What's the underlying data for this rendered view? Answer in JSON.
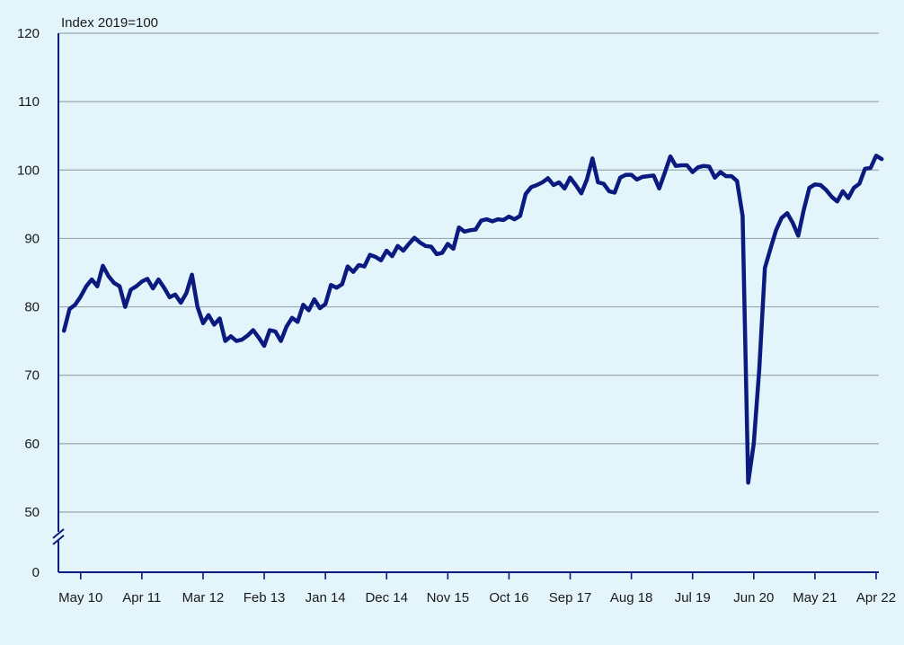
{
  "chart_data": {
    "type": "line",
    "ylabel": "Index 2019=100",
    "y_ticks": [
      0,
      50,
      60,
      70,
      80,
      90,
      100,
      110,
      120
    ],
    "y_axis_break": "between 0 and 50",
    "ylim": [
      50,
      120
    ],
    "x_tick_labels": [
      "May 10",
      "Apr 11",
      "Mar 12",
      "Feb 13",
      "Jan 14",
      "Dec 14",
      "Nov 15",
      "Oct 16",
      "Sep 17",
      "Aug 18",
      "Jul 19",
      "Jun 20",
      "May 21",
      "Apr 22"
    ],
    "grid": "horizontal",
    "colors": {
      "line": "#0a1a7f",
      "grid": "#9aa8b0",
      "axis": "#0a1a7f",
      "background": "#e3f4fb"
    },
    "series": [
      {
        "points": [
          [
            "2010-02",
            76.5
          ],
          [
            "2010-03",
            79.7
          ],
          [
            "2010-04",
            80.3
          ],
          [
            "2010-05",
            81.5
          ],
          [
            "2010-06",
            83.0
          ],
          [
            "2010-07",
            84.0
          ],
          [
            "2010-08",
            83.0
          ],
          [
            "2010-09",
            86.0
          ],
          [
            "2010-10",
            84.5
          ],
          [
            "2010-11",
            83.5
          ],
          [
            "2010-12",
            83.0
          ],
          [
            "2011-01",
            80.0
          ],
          [
            "2011-02",
            82.5
          ],
          [
            "2011-03",
            83.0
          ],
          [
            "2011-04",
            83.7
          ],
          [
            "2011-05",
            84.1
          ],
          [
            "2011-06",
            82.7
          ],
          [
            "2011-07",
            84.0
          ],
          [
            "2011-08",
            82.8
          ],
          [
            "2011-09",
            81.4
          ],
          [
            "2011-10",
            81.8
          ],
          [
            "2011-11",
            80.6
          ],
          [
            "2011-12",
            82.0
          ],
          [
            "2012-01",
            84.7
          ],
          [
            "2012-02",
            80.0
          ],
          [
            "2012-03",
            77.6
          ],
          [
            "2012-04",
            78.8
          ],
          [
            "2012-05",
            77.4
          ],
          [
            "2012-06",
            78.3
          ],
          [
            "2012-07",
            75.0
          ],
          [
            "2012-08",
            75.7
          ],
          [
            "2012-09",
            75.0
          ],
          [
            "2012-10",
            75.2
          ],
          [
            "2012-11",
            75.8
          ],
          [
            "2012-12",
            76.6
          ],
          [
            "2013-01",
            75.5
          ],
          [
            "2013-02",
            74.3
          ],
          [
            "2013-03",
            76.6
          ],
          [
            "2013-04",
            76.4
          ],
          [
            "2013-05",
            75.0
          ],
          [
            "2013-06",
            77.1
          ],
          [
            "2013-07",
            78.4
          ],
          [
            "2013-08",
            77.8
          ],
          [
            "2013-09",
            80.3
          ],
          [
            "2013-10",
            79.5
          ],
          [
            "2013-11",
            81.1
          ],
          [
            "2013-12",
            79.8
          ],
          [
            "2014-01",
            80.4
          ],
          [
            "2014-02",
            83.2
          ],
          [
            "2014-03",
            82.8
          ],
          [
            "2014-04",
            83.3
          ],
          [
            "2014-05",
            85.9
          ],
          [
            "2014-06",
            85.1
          ],
          [
            "2014-07",
            86.1
          ],
          [
            "2014-08",
            85.9
          ],
          [
            "2014-09",
            87.6
          ],
          [
            "2014-10",
            87.3
          ],
          [
            "2014-11",
            86.8
          ],
          [
            "2014-12",
            88.2
          ],
          [
            "2015-01",
            87.4
          ],
          [
            "2015-02",
            88.9
          ],
          [
            "2015-03",
            88.2
          ],
          [
            "2015-04",
            89.2
          ],
          [
            "2015-05",
            90.1
          ],
          [
            "2015-06",
            89.4
          ],
          [
            "2015-07",
            88.9
          ],
          [
            "2015-08",
            88.8
          ],
          [
            "2015-09",
            87.7
          ],
          [
            "2015-10",
            87.9
          ],
          [
            "2015-11",
            89.2
          ],
          [
            "2015-12",
            88.5
          ],
          [
            "2016-01",
            91.6
          ],
          [
            "2016-02",
            91.0
          ],
          [
            "2016-03",
            91.2
          ],
          [
            "2016-04",
            91.3
          ],
          [
            "2016-05",
            92.6
          ],
          [
            "2016-06",
            92.8
          ],
          [
            "2016-07",
            92.5
          ],
          [
            "2016-08",
            92.8
          ],
          [
            "2016-09",
            92.7
          ],
          [
            "2016-10",
            93.2
          ],
          [
            "2016-11",
            92.8
          ],
          [
            "2016-12",
            93.3
          ],
          [
            "2017-01",
            96.5
          ],
          [
            "2017-02",
            97.5
          ],
          [
            "2017-03",
            97.8
          ],
          [
            "2017-04",
            98.2
          ],
          [
            "2017-05",
            98.8
          ],
          [
            "2017-06",
            97.8
          ],
          [
            "2017-07",
            98.2
          ],
          [
            "2017-08",
            97.3
          ],
          [
            "2017-09",
            98.9
          ],
          [
            "2017-10",
            97.8
          ],
          [
            "2017-11",
            96.6
          ],
          [
            "2017-12",
            98.6
          ],
          [
            "2018-01",
            101.7
          ],
          [
            "2018-02",
            98.2
          ],
          [
            "2018-03",
            98.0
          ],
          [
            "2018-04",
            96.9
          ],
          [
            "2018-05",
            96.7
          ],
          [
            "2018-06",
            98.9
          ],
          [
            "2018-07",
            99.3
          ],
          [
            "2018-08",
            99.3
          ],
          [
            "2018-09",
            98.6
          ],
          [
            "2018-10",
            99.0
          ],
          [
            "2018-11",
            99.1
          ],
          [
            "2018-12",
            99.2
          ],
          [
            "2019-01",
            97.3
          ],
          [
            "2019-02",
            99.6
          ],
          [
            "2019-03",
            102.0
          ],
          [
            "2019-04",
            100.6
          ],
          [
            "2019-05",
            100.7
          ],
          [
            "2019-06",
            100.7
          ],
          [
            "2019-07",
            99.7
          ],
          [
            "2019-08",
            100.4
          ],
          [
            "2019-09",
            100.6
          ],
          [
            "2019-10",
            100.5
          ],
          [
            "2019-11",
            98.9
          ],
          [
            "2019-12",
            99.7
          ],
          [
            "2020-01",
            99.1
          ],
          [
            "2020-02",
            99.1
          ],
          [
            "2020-03",
            98.4
          ],
          [
            "2020-04",
            93.3
          ],
          [
            "2020-05",
            54.3
          ],
          [
            "2020-06",
            60.0
          ],
          [
            "2020-07",
            71.0
          ],
          [
            "2020-08",
            85.7
          ],
          [
            "2020-09",
            88.5
          ],
          [
            "2020-10",
            91.2
          ],
          [
            "2020-11",
            93.0
          ],
          [
            "2020-12",
            93.7
          ],
          [
            "2021-01",
            92.3
          ],
          [
            "2021-02",
            90.4
          ],
          [
            "2021-03",
            94.2
          ],
          [
            "2021-04",
            97.4
          ],
          [
            "2021-05",
            97.9
          ],
          [
            "2021-06",
            97.8
          ],
          [
            "2021-07",
            97.1
          ],
          [
            "2021-08",
            96.1
          ],
          [
            "2021-09",
            95.4
          ],
          [
            "2021-10",
            96.9
          ],
          [
            "2021-11",
            95.9
          ],
          [
            "2021-12",
            97.4
          ],
          [
            "2022-01",
            98.0
          ],
          [
            "2022-02",
            100.2
          ],
          [
            "2022-03",
            100.3
          ],
          [
            "2022-04",
            102.1
          ],
          [
            "2022-05",
            101.6
          ]
        ]
      }
    ]
  }
}
